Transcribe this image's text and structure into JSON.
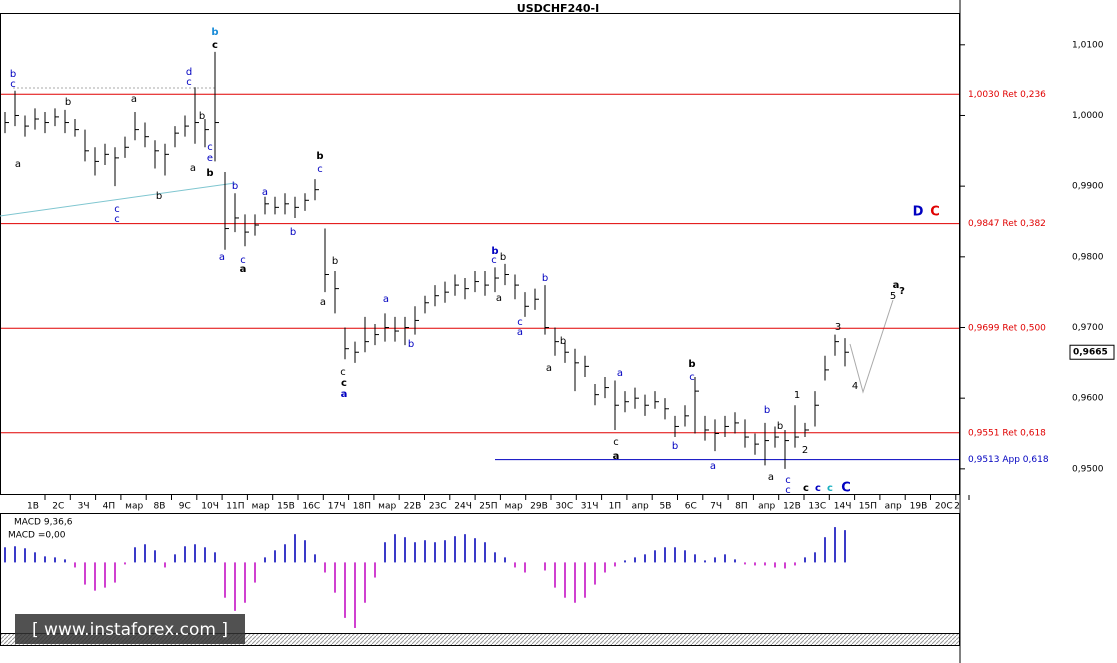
{
  "chart_data": {
    "type": "ohlc",
    "title": "USDCHF240-I",
    "categories": [
      "1В",
      "2С",
      "3Ч",
      "4П",
      "мар",
      "8В",
      "9С",
      "10Ч",
      "11П",
      "мар",
      "15В",
      "16С",
      "17Ч",
      "18П",
      "мар",
      "22В",
      "23С",
      "24Ч",
      "25П",
      "мар",
      "29В",
      "30С",
      "31Ч",
      "1П",
      "апр",
      "5В",
      "6С",
      "7Ч",
      "8П",
      "апр",
      "12В",
      "13С",
      "14Ч",
      "15П",
      "апр",
      "19В",
      "20С",
      "2"
    ],
    "high": [
      1.0005,
      1.0035,
      1.0,
      1.001,
      1.0005,
      1.001,
      1.0008,
      0.9995,
      0.998,
      0.9955,
      0.996,
      0.9955,
      0.997,
      1.0005,
      0.999,
      0.9965,
      0.996,
      0.9985,
      1.0,
      1.004,
      0.9995,
      1.009,
      0.992,
      0.989,
      0.986,
      0.986,
      0.9885,
      0.9885,
      0.989,
      0.9885,
      0.989,
      0.991,
      0.984,
      0.978,
      0.97,
      0.968,
      0.9715,
      0.9705,
      0.972,
      0.9715,
      0.9715,
      0.973,
      0.9745,
      0.976,
      0.9765,
      0.9775,
      0.977,
      0.978,
      0.978,
      0.9785,
      0.979,
      0.9775,
      0.975,
      0.9755,
      0.976,
      0.97,
      0.968,
      0.967,
      0.966,
      0.962,
      0.963,
      0.9625,
      0.961,
      0.9615,
      0.9605,
      0.961,
      0.96,
      0.9575,
      0.959,
      0.963,
      0.9575,
      0.957,
      0.9575,
      0.958,
      0.957,
      0.955,
      0.9565,
      0.956,
      0.9555,
      0.959,
      0.9565,
      0.961,
      0.966,
      0.969,
      0.9685
    ],
    "low": [
      0.9975,
      0.9985,
      0.997,
      0.998,
      0.9975,
      0.9985,
      0.9975,
      0.997,
      0.9935,
      0.9915,
      0.993,
      0.99,
      0.994,
      0.9965,
      0.9955,
      0.9925,
      0.9915,
      0.9955,
      0.997,
      0.996,
      0.9955,
      0.9935,
      0.981,
      0.9835,
      0.9815,
      0.983,
      0.986,
      0.986,
      0.986,
      0.9855,
      0.9865,
      0.988,
      0.975,
      0.972,
      0.9655,
      0.965,
      0.9665,
      0.9675,
      0.968,
      0.968,
      0.9675,
      0.969,
      0.972,
      0.973,
      0.9735,
      0.9745,
      0.974,
      0.975,
      0.9745,
      0.975,
      0.976,
      0.974,
      0.9715,
      0.9725,
      0.969,
      0.966,
      0.965,
      0.961,
      0.963,
      0.959,
      0.96,
      0.9555,
      0.958,
      0.9585,
      0.9575,
      0.9585,
      0.957,
      0.9545,
      0.956,
      0.955,
      0.954,
      0.9525,
      0.9545,
      0.955,
      0.953,
      0.952,
      0.9505,
      0.953,
      0.95,
      0.953,
      0.9545,
      0.956,
      0.9625,
      0.966,
      0.9645
    ],
    "close": [
      0.999,
      1.0,
      0.9985,
      0.9995,
      0.999,
      0.9998,
      0.999,
      0.998,
      0.995,
      0.9935,
      0.9945,
      0.994,
      0.9955,
      0.998,
      0.997,
      0.995,
      0.9945,
      0.9975,
      0.9985,
      0.999,
      0.998,
      0.999,
      0.984,
      0.9855,
      0.9835,
      0.9845,
      0.9875,
      0.987,
      0.9875,
      0.987,
      0.988,
      0.9895,
      0.9775,
      0.9755,
      0.967,
      0.9665,
      0.968,
      0.969,
      0.97,
      0.9695,
      0.97,
      0.971,
      0.9735,
      0.9745,
      0.975,
      0.976,
      0.9755,
      0.9765,
      0.976,
      0.977,
      0.9775,
      0.976,
      0.973,
      0.974,
      0.97,
      0.968,
      0.9665,
      0.965,
      0.9645,
      0.9605,
      0.9615,
      0.959,
      0.9595,
      0.96,
      0.959,
      0.9595,
      0.9585,
      0.956,
      0.9575,
      0.961,
      0.9555,
      0.955,
      0.956,
      0.9565,
      0.9545,
      0.9535,
      0.954,
      0.9545,
      0.954,
      0.9545,
      0.9555,
      0.959,
      0.964,
      0.968,
      0.9665
    ],
    "color": "#000000",
    "ylim": [
      0.9463,
      1.0145
    ],
    "yticks": [
      {
        "value": 1.01,
        "label": "1,0100"
      },
      {
        "value": 1.0,
        "label": "1,0000"
      },
      {
        "value": 0.99,
        "label": "0,9900"
      },
      {
        "value": 0.98,
        "label": "0,9800"
      },
      {
        "value": 0.97,
        "label": "0,9700"
      },
      {
        "value": 0.96,
        "label": "0,9600"
      },
      {
        "value": 0.95,
        "label": "0,9500"
      }
    ],
    "last_price": {
      "value": 0.9665,
      "label": "0,9665"
    },
    "levels": [
      {
        "value": 1.003,
        "label": "1,0030 Ret 0,236",
        "color": "#e00000"
      },
      {
        "value": 0.9847,
        "label": "0,9847 Ret 0,382",
        "color": "#e00000"
      },
      {
        "value": 0.9699,
        "label": "0,9699 Ret 0,500",
        "color": "#e00000"
      },
      {
        "value": 0.9551,
        "label": "0,9551 Ret 0,618",
        "color": "#e00000"
      },
      {
        "value": 0.9513,
        "label": "0,9513 App 0,618",
        "color": "#0000c0"
      }
    ],
    "annotations": [
      {
        "text": "b",
        "color": "#1a8cd8"
      },
      {
        "text": "c",
        "color": "#000000"
      },
      {
        "text": "b",
        "color": "#0000c0"
      },
      {
        "text": "c",
        "color": "#0000c0"
      },
      {
        "text": "b",
        "color": "#000000"
      },
      {
        "text": "a",
        "color": "#000000"
      },
      {
        "text": "a",
        "color": "#000000"
      },
      {
        "text": "d",
        "color": "#0000c0"
      },
      {
        "text": "c",
        "color": "#0000c0"
      },
      {
        "text": "b",
        "color": "#000000"
      },
      {
        "text": "c",
        "color": "#0000c0"
      },
      {
        "text": "e",
        "color": "#0000c0"
      },
      {
        "text": "b",
        "color": "#000000"
      },
      {
        "text": "a",
        "color": "#000000"
      },
      {
        "text": "c",
        "color": "#0000c0"
      },
      {
        "text": "c",
        "color": "#0000c0"
      },
      {
        "text": "b",
        "color": "#000000"
      },
      {
        "text": "b",
        "color": "#0000c0"
      },
      {
        "text": "a",
        "color": "#0000c0"
      },
      {
        "text": "b",
        "color": "#0000c0"
      },
      {
        "text": "a",
        "color": "#0000c0"
      },
      {
        "text": "c",
        "color": "#0000c0"
      },
      {
        "text": "a",
        "color": "#000000"
      },
      {
        "text": "b",
        "color": "#000000"
      },
      {
        "text": "c",
        "color": "#0000c0"
      },
      {
        "text": "b",
        "color": "#000000"
      },
      {
        "text": "a",
        "color": "#000000"
      },
      {
        "text": "a",
        "color": "#0000c0"
      },
      {
        "text": "b",
        "color": "#0000c0"
      },
      {
        "text": "c",
        "color": "#000000"
      },
      {
        "text": "c",
        "color": "#000000"
      },
      {
        "text": "a",
        "color": "#0000c0"
      },
      {
        "text": "b",
        "color": "#0000c0"
      },
      {
        "text": "c",
        "color": "#0000c0"
      },
      {
        "text": "b",
        "color": "#000000"
      },
      {
        "text": "a",
        "color": "#000000"
      },
      {
        "text": "b",
        "color": "#0000c0"
      },
      {
        "text": "c",
        "color": "#0000c0"
      },
      {
        "text": "a",
        "color": "#0000c0"
      },
      {
        "text": "b",
        "color": "#000000"
      },
      {
        "text": "a",
        "color": "#000000"
      },
      {
        "text": "a",
        "color": "#0000c0"
      },
      {
        "text": "b",
        "color": "#000000"
      },
      {
        "text": "c",
        "color": "#0000c0"
      },
      {
        "text": "b",
        "color": "#0000c0"
      },
      {
        "text": "a",
        "color": "#0000c0"
      },
      {
        "text": "c",
        "color": "#000000"
      },
      {
        "text": "a",
        "color": "#000000"
      },
      {
        "text": "b",
        "color": "#0000c0"
      },
      {
        "text": "b",
        "color": "#000000"
      },
      {
        "text": "a",
        "color": "#000000"
      },
      {
        "text": "c",
        "color": "#0000c0"
      },
      {
        "text": "c",
        "color": "#0000c0"
      },
      {
        "text": "1",
        "color": "#000000"
      },
      {
        "text": "2",
        "color": "#000000"
      },
      {
        "text": "3",
        "color": "#000000"
      },
      {
        "text": "4",
        "color": "#000000"
      },
      {
        "text": "c",
        "color": "#000000"
      },
      {
        "text": "c",
        "color": "#0000c0"
      },
      {
        "text": "c",
        "color": "#1ab0c0"
      },
      {
        "text": "C",
        "color": "#0000c0"
      },
      {
        "text": "D",
        "color": "#0000c0"
      },
      {
        "text": "C",
        "color": "#e00000"
      },
      {
        "text": "a",
        "color": "#000000"
      },
      {
        "text": "5",
        "color": "#000000"
      },
      {
        "text": "?",
        "color": "#000000"
      }
    ],
    "indicator": {
      "title": "MACD 9,36,6",
      "readout": "MACD =0,00",
      "values": [
        15,
        16,
        14,
        10,
        6,
        5,
        3,
        -5,
        -22,
        -28,
        -25,
        -20,
        -2,
        15,
        18,
        12,
        -5,
        8,
        16,
        18,
        15,
        10,
        -35,
        -48,
        -40,
        -20,
        5,
        12,
        18,
        28,
        22,
        8,
        -10,
        -30,
        -55,
        -65,
        -40,
        -15,
        20,
        28,
        25,
        20,
        22,
        20,
        22,
        26,
        28,
        24,
        20,
        10,
        5,
        -5,
        -10,
        0,
        -8,
        -25,
        -35,
        -40,
        -35,
        -22,
        -10,
        -4,
        2,
        5,
        8,
        12,
        15,
        15,
        12,
        8,
        2,
        5,
        8,
        3,
        -2,
        -3,
        -3,
        -5,
        -6,
        -3,
        5,
        10,
        25,
        35,
        32
      ],
      "ylim": [
        -70,
        48
      ],
      "positive_color": "#3a3ac8",
      "negative_color": "#d040d0"
    },
    "watermark": "[ www.instaforex.com ]"
  }
}
